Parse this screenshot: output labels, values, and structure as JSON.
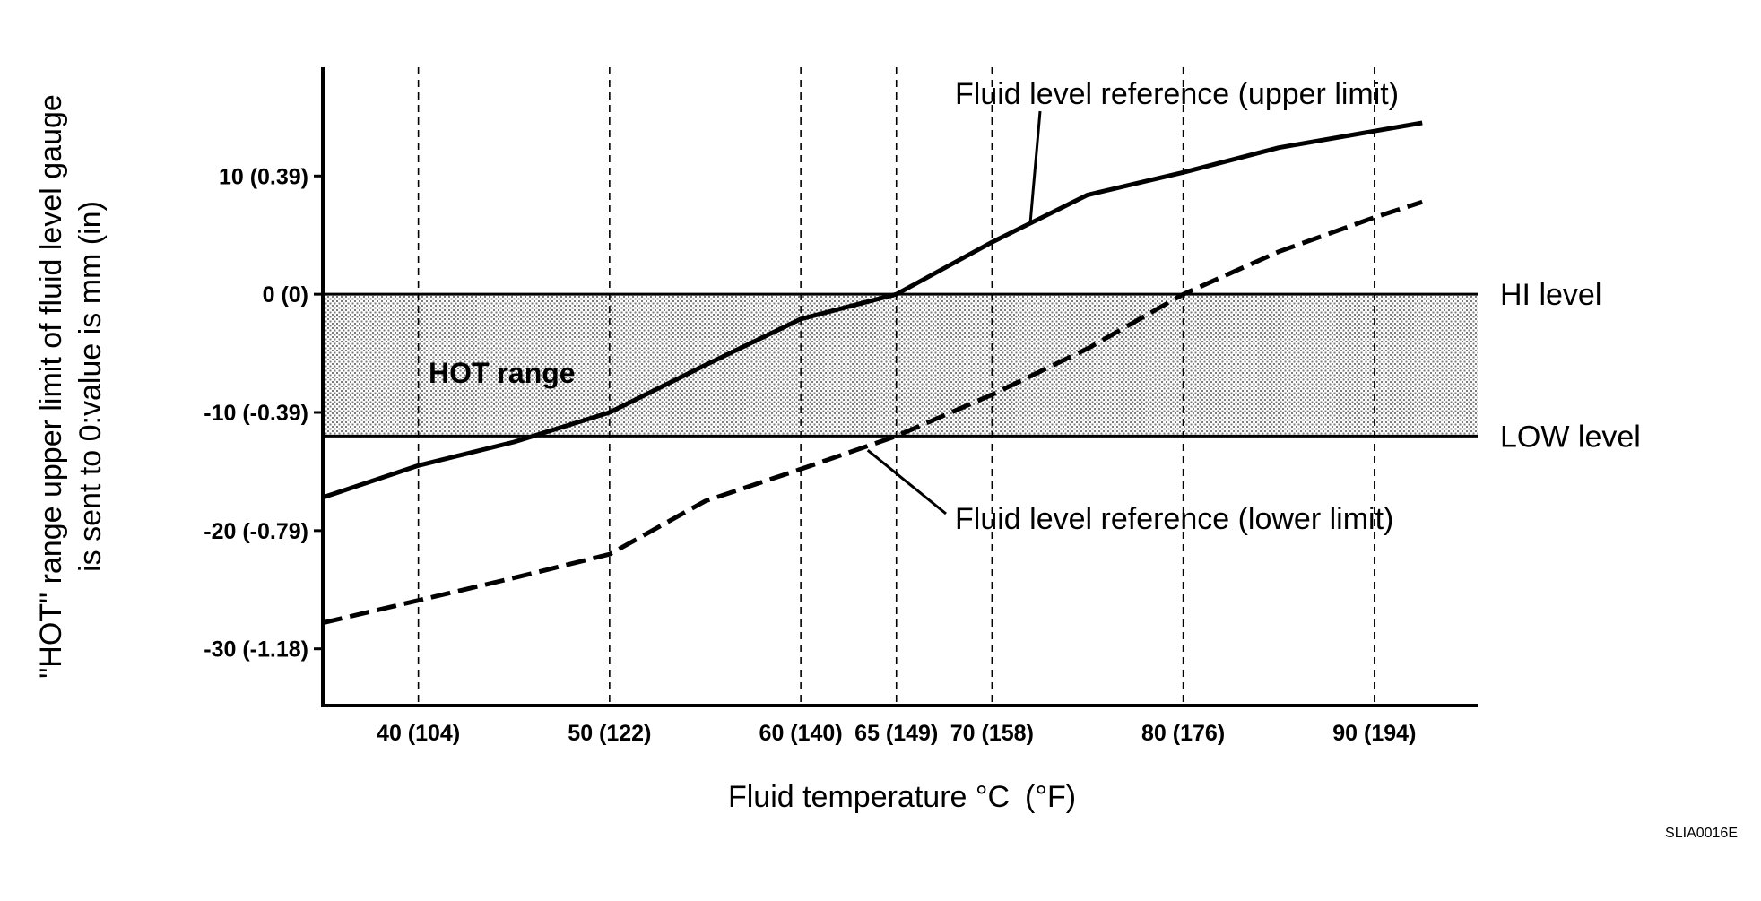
{
  "chart_data": {
    "type": "line",
    "xlabel": "Fluid temperature °C (°F)",
    "ylabel": [
      "\"HOT\" range upper limit of fluid level gauge",
      "is sent to 0:value is mm (in)"
    ],
    "x_ticks": [
      {
        "value": 40,
        "label": "40 (104)"
      },
      {
        "value": 50,
        "label": "50 (122)"
      },
      {
        "value": 60,
        "label": "60 (140)"
      },
      {
        "value": 65,
        "label": "65 (149)"
      },
      {
        "value": 70,
        "label": "70 (158)"
      },
      {
        "value": 80,
        "label": "80 (176)"
      },
      {
        "value": 90,
        "label": "90 (194)"
      }
    ],
    "y_ticks": [
      {
        "value": 10,
        "label": "10 (0.39)"
      },
      {
        "value": 0,
        "label": "0 (0)"
      },
      {
        "value": -10,
        "label": "-10 (-0.39)"
      },
      {
        "value": -20,
        "label": "-20 (-0.79)"
      },
      {
        "value": -30,
        "label": "-30 (-1.18)"
      }
    ],
    "xlim": [
      35,
      95.4
    ],
    "ylim": [
      -34.8,
      19.2
    ],
    "grid": "vertical dashed at x ticks",
    "hot_band": {
      "label": "HOT range",
      "upper": 0,
      "lower": -12
    },
    "reference_lines": [
      {
        "name": "HI level",
        "value": 0
      },
      {
        "name": "LOW level",
        "value": -12
      }
    ],
    "series": [
      {
        "name": "Fluid level reference (upper limit)",
        "style": "solid",
        "x": [
          35,
          40,
          45,
          50,
          55,
          60,
          65,
          70,
          75,
          80,
          85,
          90,
          92.5
        ],
        "y": [
          -17.2,
          -14.5,
          -12.5,
          -10,
          -6,
          -2.1,
          0,
          4.4,
          8.4,
          10.3,
          12.4,
          13.8,
          14.5
        ]
      },
      {
        "name": "Fluid level reference (lower limit)",
        "style": "dashed",
        "x": [
          35,
          40,
          45,
          50,
          55,
          60,
          65,
          70,
          75,
          80,
          85,
          90,
          92.5
        ],
        "y": [
          -27.8,
          -25.9,
          -24,
          -22,
          -17.5,
          -14.8,
          -12,
          -8.5,
          -4.6,
          0,
          3.6,
          6.5,
          7.8
        ]
      }
    ]
  },
  "figure_code": "SLIA0016E"
}
